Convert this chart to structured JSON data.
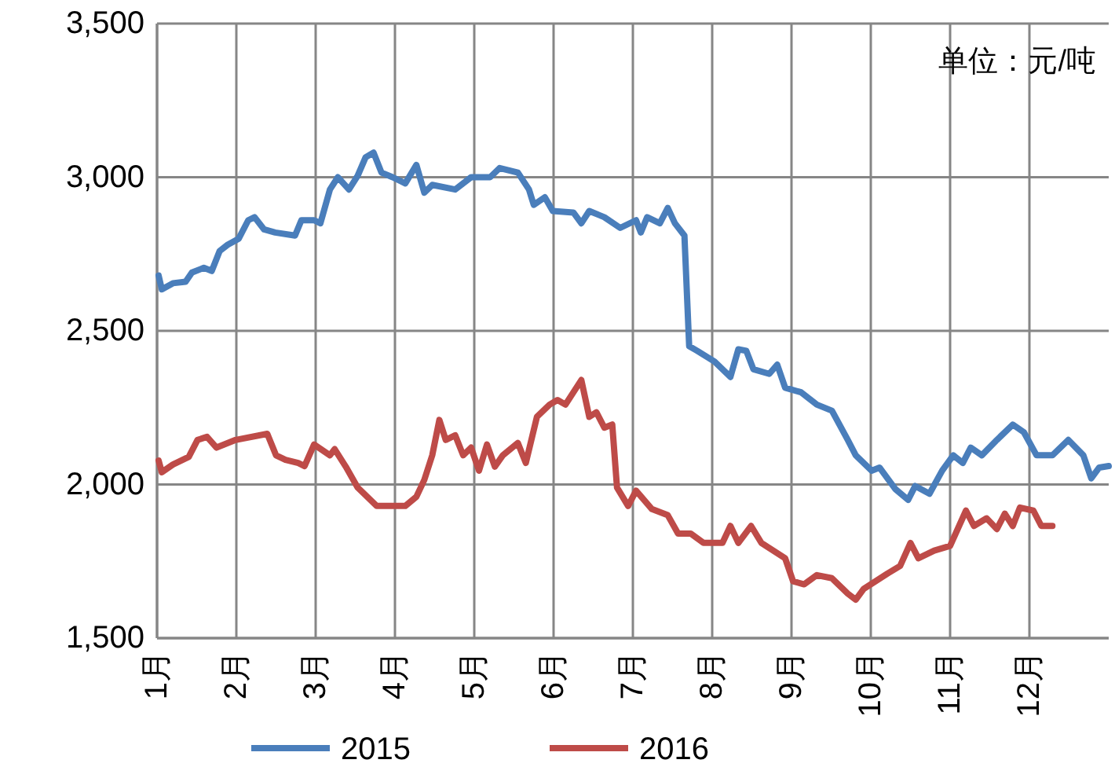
{
  "chart_data": {
    "type": "line",
    "annotations": [
      "单位：元/吨"
    ],
    "xlim": [
      1,
      13
    ],
    "xticks": [
      {
        "value": 1,
        "label": "1月"
      },
      {
        "value": 2,
        "label": "2月"
      },
      {
        "value": 3,
        "label": "3月"
      },
      {
        "value": 4,
        "label": "4月"
      },
      {
        "value": 5,
        "label": "5月"
      },
      {
        "value": 6,
        "label": "6月"
      },
      {
        "value": 7,
        "label": "7月"
      },
      {
        "value": 8,
        "label": "8月"
      },
      {
        "value": 9,
        "label": "9月"
      },
      {
        "value": 10,
        "label": "10月"
      },
      {
        "value": 11,
        "label": "11月"
      },
      {
        "value": 12,
        "label": "12月"
      }
    ],
    "ylim": [
      1500,
      3500
    ],
    "yticks": [
      {
        "value": 1500,
        "label": "1,500"
      },
      {
        "value": 2000,
        "label": "2,000"
      },
      {
        "value": 2500,
        "label": "2,500"
      },
      {
        "value": 3000,
        "label": "3,000"
      },
      {
        "value": 3500,
        "label": "3,500"
      }
    ],
    "grid": true,
    "legend": "bottom",
    "marker": "none",
    "line_style": "solid",
    "series": [
      {
        "name": "2015",
        "color": "#4a7ebb",
        "x": [
          1.02,
          1.06,
          1.2,
          1.36,
          1.44,
          1.59,
          1.69,
          1.79,
          1.89,
          2.03,
          2.15,
          2.23,
          2.35,
          2.49,
          2.74,
          2.82,
          2.98,
          3.06,
          3.18,
          3.28,
          3.42,
          3.53,
          3.63,
          3.73,
          3.83,
          3.97,
          4.13,
          4.27,
          4.37,
          4.47,
          4.76,
          4.96,
          5.2,
          5.32,
          5.55,
          5.69,
          5.75,
          5.89,
          5.99,
          6.25,
          6.35,
          6.45,
          6.64,
          6.84,
          7.04,
          7.1,
          7.18,
          7.34,
          7.44,
          7.53,
          7.65,
          7.71,
          7.81,
          8.03,
          8.23,
          8.33,
          8.43,
          8.52,
          8.72,
          8.82,
          8.92,
          9.12,
          9.32,
          9.51,
          9.71,
          9.81,
          10.01,
          10.11,
          10.31,
          10.47,
          10.56,
          10.74,
          10.9,
          11.04,
          11.16,
          11.26,
          11.4,
          11.59,
          11.79,
          11.93,
          12.09,
          12.29,
          12.49,
          12.68,
          12.78,
          12.88,
          13
        ],
        "values": [
          2680,
          2635,
          2655,
          2660,
          2690,
          2705,
          2695,
          2760,
          2780,
          2800,
          2860,
          2870,
          2830,
          2820,
          2810,
          2860,
          2860,
          2850,
          2960,
          3000,
          2960,
          3005,
          3065,
          3080,
          3015,
          3000,
          2980,
          3040,
          2950,
          2975,
          2960,
          3000,
          3000,
          3030,
          3015,
          2960,
          2910,
          2935,
          2890,
          2885,
          2850,
          2890,
          2870,
          2835,
          2860,
          2820,
          2870,
          2850,
          2900,
          2850,
          2810,
          2450,
          2435,
          2400,
          2350,
          2440,
          2435,
          2375,
          2360,
          2390,
          2315,
          2300,
          2260,
          2240,
          2145,
          2095,
          2045,
          2055,
          1985,
          1950,
          1995,
          1970,
          2045,
          2095,
          2070,
          2120,
          2095,
          2145,
          2195,
          2170,
          2095,
          2095,
          2145,
          2095,
          2020,
          2055,
          2060
        ]
      },
      {
        "name": "2016",
        "color": "#be4b48",
        "x": [
          1.02,
          1.06,
          1.2,
          1.4,
          1.51,
          1.63,
          1.75,
          1.99,
          2.39,
          2.5,
          2.62,
          2.78,
          2.86,
          2.98,
          3.18,
          3.24,
          3.38,
          3.53,
          3.77,
          3.97,
          4.13,
          4.27,
          4.37,
          4.47,
          4.56,
          4.64,
          4.76,
          4.86,
          4.96,
          5.06,
          5.16,
          5.26,
          5.36,
          5.55,
          5.65,
          5.79,
          5.95,
          6.05,
          6.15,
          6.35,
          6.45,
          6.54,
          6.64,
          6.74,
          6.8,
          6.94,
          7.04,
          7.24,
          7.44,
          7.57,
          7.73,
          7.89,
          8.03,
          8.13,
          8.23,
          8.33,
          8.49,
          8.62,
          8.92,
          9.02,
          9.16,
          9.32,
          9.51,
          9.71,
          9.81,
          9.91,
          10.21,
          10.37,
          10.5,
          10.6,
          10.8,
          11,
          11.2,
          11.3,
          11.46,
          11.59,
          11.69,
          11.79,
          11.88,
          12.05,
          12.15,
          12.29
        ],
        "values": [
          2078,
          2040,
          2065,
          2090,
          2145,
          2155,
          2120,
          2145,
          2165,
          2095,
          2080,
          2070,
          2060,
          2130,
          2095,
          2115,
          2058,
          1990,
          1930,
          1930,
          1930,
          1960,
          2015,
          2095,
          2210,
          2145,
          2160,
          2095,
          2120,
          2045,
          2130,
          2058,
          2095,
          2135,
          2070,
          2220,
          2260,
          2275,
          2260,
          2340,
          2220,
          2235,
          2185,
          2195,
          1990,
          1930,
          1980,
          1920,
          1900,
          1840,
          1840,
          1810,
          1810,
          1810,
          1865,
          1810,
          1865,
          1810,
          1760,
          1685,
          1675,
          1705,
          1695,
          1645,
          1625,
          1660,
          1710,
          1735,
          1810,
          1760,
          1785,
          1800,
          1915,
          1865,
          1890,
          1855,
          1905,
          1865,
          1925,
          1915,
          1865,
          1865
        ]
      }
    ]
  }
}
